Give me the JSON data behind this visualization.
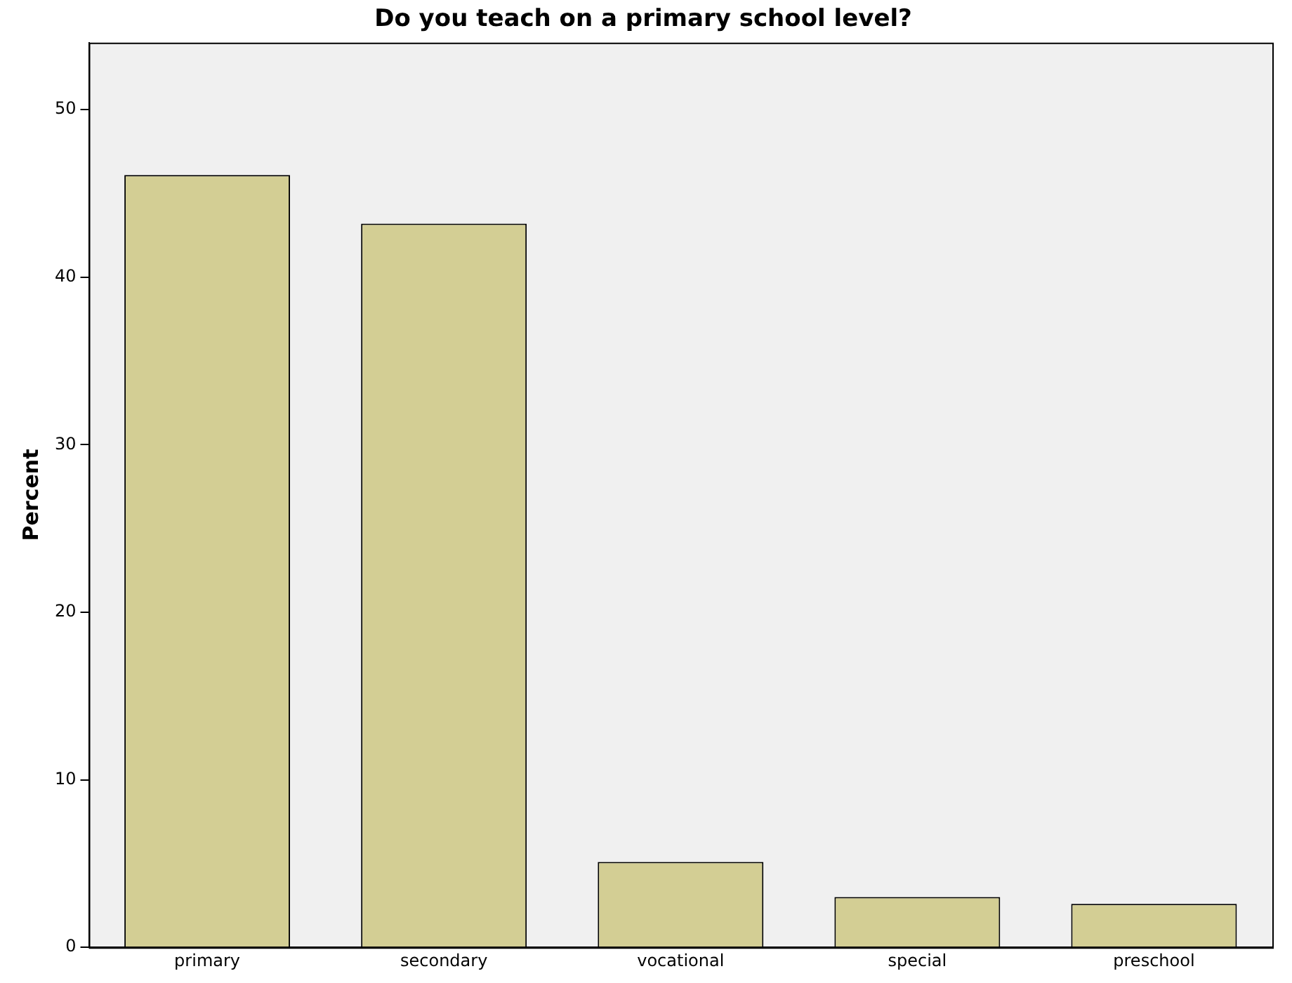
{
  "chart_data": {
    "type": "bar",
    "title": "Do you teach on a primary school level?",
    "ylabel": "Percent",
    "categories": [
      "primary",
      "secondary",
      "vocational",
      "special",
      "preschool"
    ],
    "values": [
      46.1,
      43.2,
      5.1,
      3.0,
      2.6
    ],
    "color": "#d3ce94",
    "ylim": [
      0,
      54
    ],
    "yticks": [
      0,
      10,
      20,
      30,
      40,
      50
    ],
    "grid": false,
    "legend": false
  }
}
